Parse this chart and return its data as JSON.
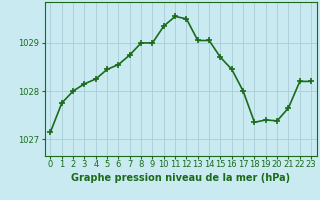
{
  "x": [
    0,
    1,
    2,
    3,
    4,
    5,
    6,
    7,
    8,
    9,
    10,
    11,
    12,
    13,
    14,
    15,
    16,
    17,
    18,
    19,
    20,
    21,
    22,
    23
  ],
  "y": [
    1027.15,
    1027.75,
    1028.0,
    1028.15,
    1028.25,
    1028.45,
    1028.55,
    1028.75,
    1029.0,
    1029.0,
    1029.35,
    1029.55,
    1029.5,
    1029.05,
    1029.05,
    1028.7,
    1028.45,
    1028.0,
    1027.35,
    1027.4,
    1027.38,
    1027.65,
    1028.2,
    1028.2
  ],
  "line_color": "#1a6b1a",
  "marker": "+",
  "marker_size": 4,
  "marker_linewidth": 1.2,
  "line_width": 1.2,
  "background_color": "#c8eaf0",
  "grid_color": "#aaccd8",
  "tick_label_color": "#1a6b1a",
  "xlabel": "Graphe pression niveau de la mer (hPa)",
  "xlabel_color": "#1a6b1a",
  "xlabel_fontsize": 7,
  "ytick_labels": [
    "1027",
    "1028",
    "1029"
  ],
  "ytick_values": [
    1027,
    1028,
    1029
  ],
  "ylim": [
    1026.65,
    1029.85
  ],
  "xlim": [
    -0.5,
    23.5
  ],
  "tick_fontsize": 6,
  "spine_color": "#1a6b1a"
}
